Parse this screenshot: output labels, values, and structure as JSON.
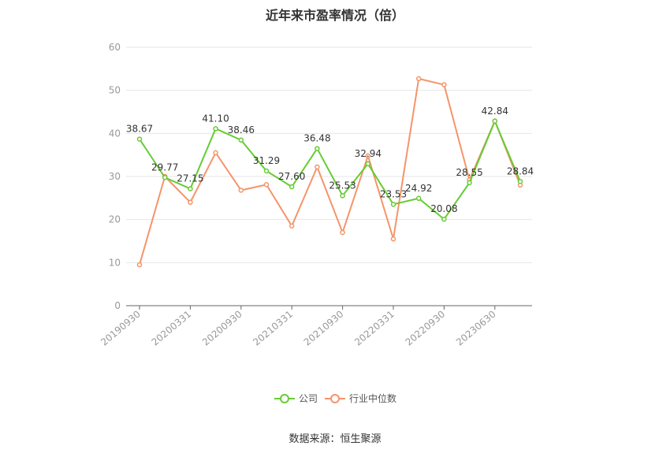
{
  "page": {
    "title": "近年来市盈率情况（倍）",
    "source": "数据来源：恒生聚源"
  },
  "chart_data": {
    "type": "line",
    "title": "近年来市盈率情况（倍）",
    "xlabel": "",
    "ylabel": "",
    "ylim": [
      0,
      60
    ],
    "yticks": [
      0,
      10,
      20,
      30,
      40,
      50,
      60
    ],
    "grid": true,
    "legend_position": "bottom",
    "x_tick_labels": [
      "20190930",
      "20200331",
      "20200930",
      "20210331",
      "20210930",
      "20220331",
      "20220930",
      "20230630"
    ],
    "x_tick_indices": [
      0,
      2,
      4,
      6,
      8,
      10,
      12,
      14
    ],
    "point_count": 16,
    "series": [
      {
        "name": "公司",
        "color": "#66cc33",
        "values": [
          38.67,
          29.77,
          27.15,
          41.1,
          38.46,
          31.29,
          27.6,
          36.48,
          25.53,
          32.94,
          23.53,
          24.92,
          20.08,
          28.55,
          42.84,
          28.84
        ],
        "labels": [
          "38.67",
          "29.77",
          "27.15",
          "41.10",
          "38.46",
          "31.29",
          "27.60",
          "36.48",
          "25.53",
          "32.94",
          "23.53",
          "24.92",
          "20.08",
          "28.55",
          "42.84",
          "28.84"
        ]
      },
      {
        "name": "行业中位数",
        "color": "#f5946a",
        "values": [
          9.5,
          30.0,
          24.0,
          35.5,
          26.8,
          28.1,
          18.5,
          32.2,
          17.0,
          34.8,
          15.5,
          52.7,
          51.3,
          29.2,
          42.9,
          28.0
        ]
      }
    ]
  }
}
